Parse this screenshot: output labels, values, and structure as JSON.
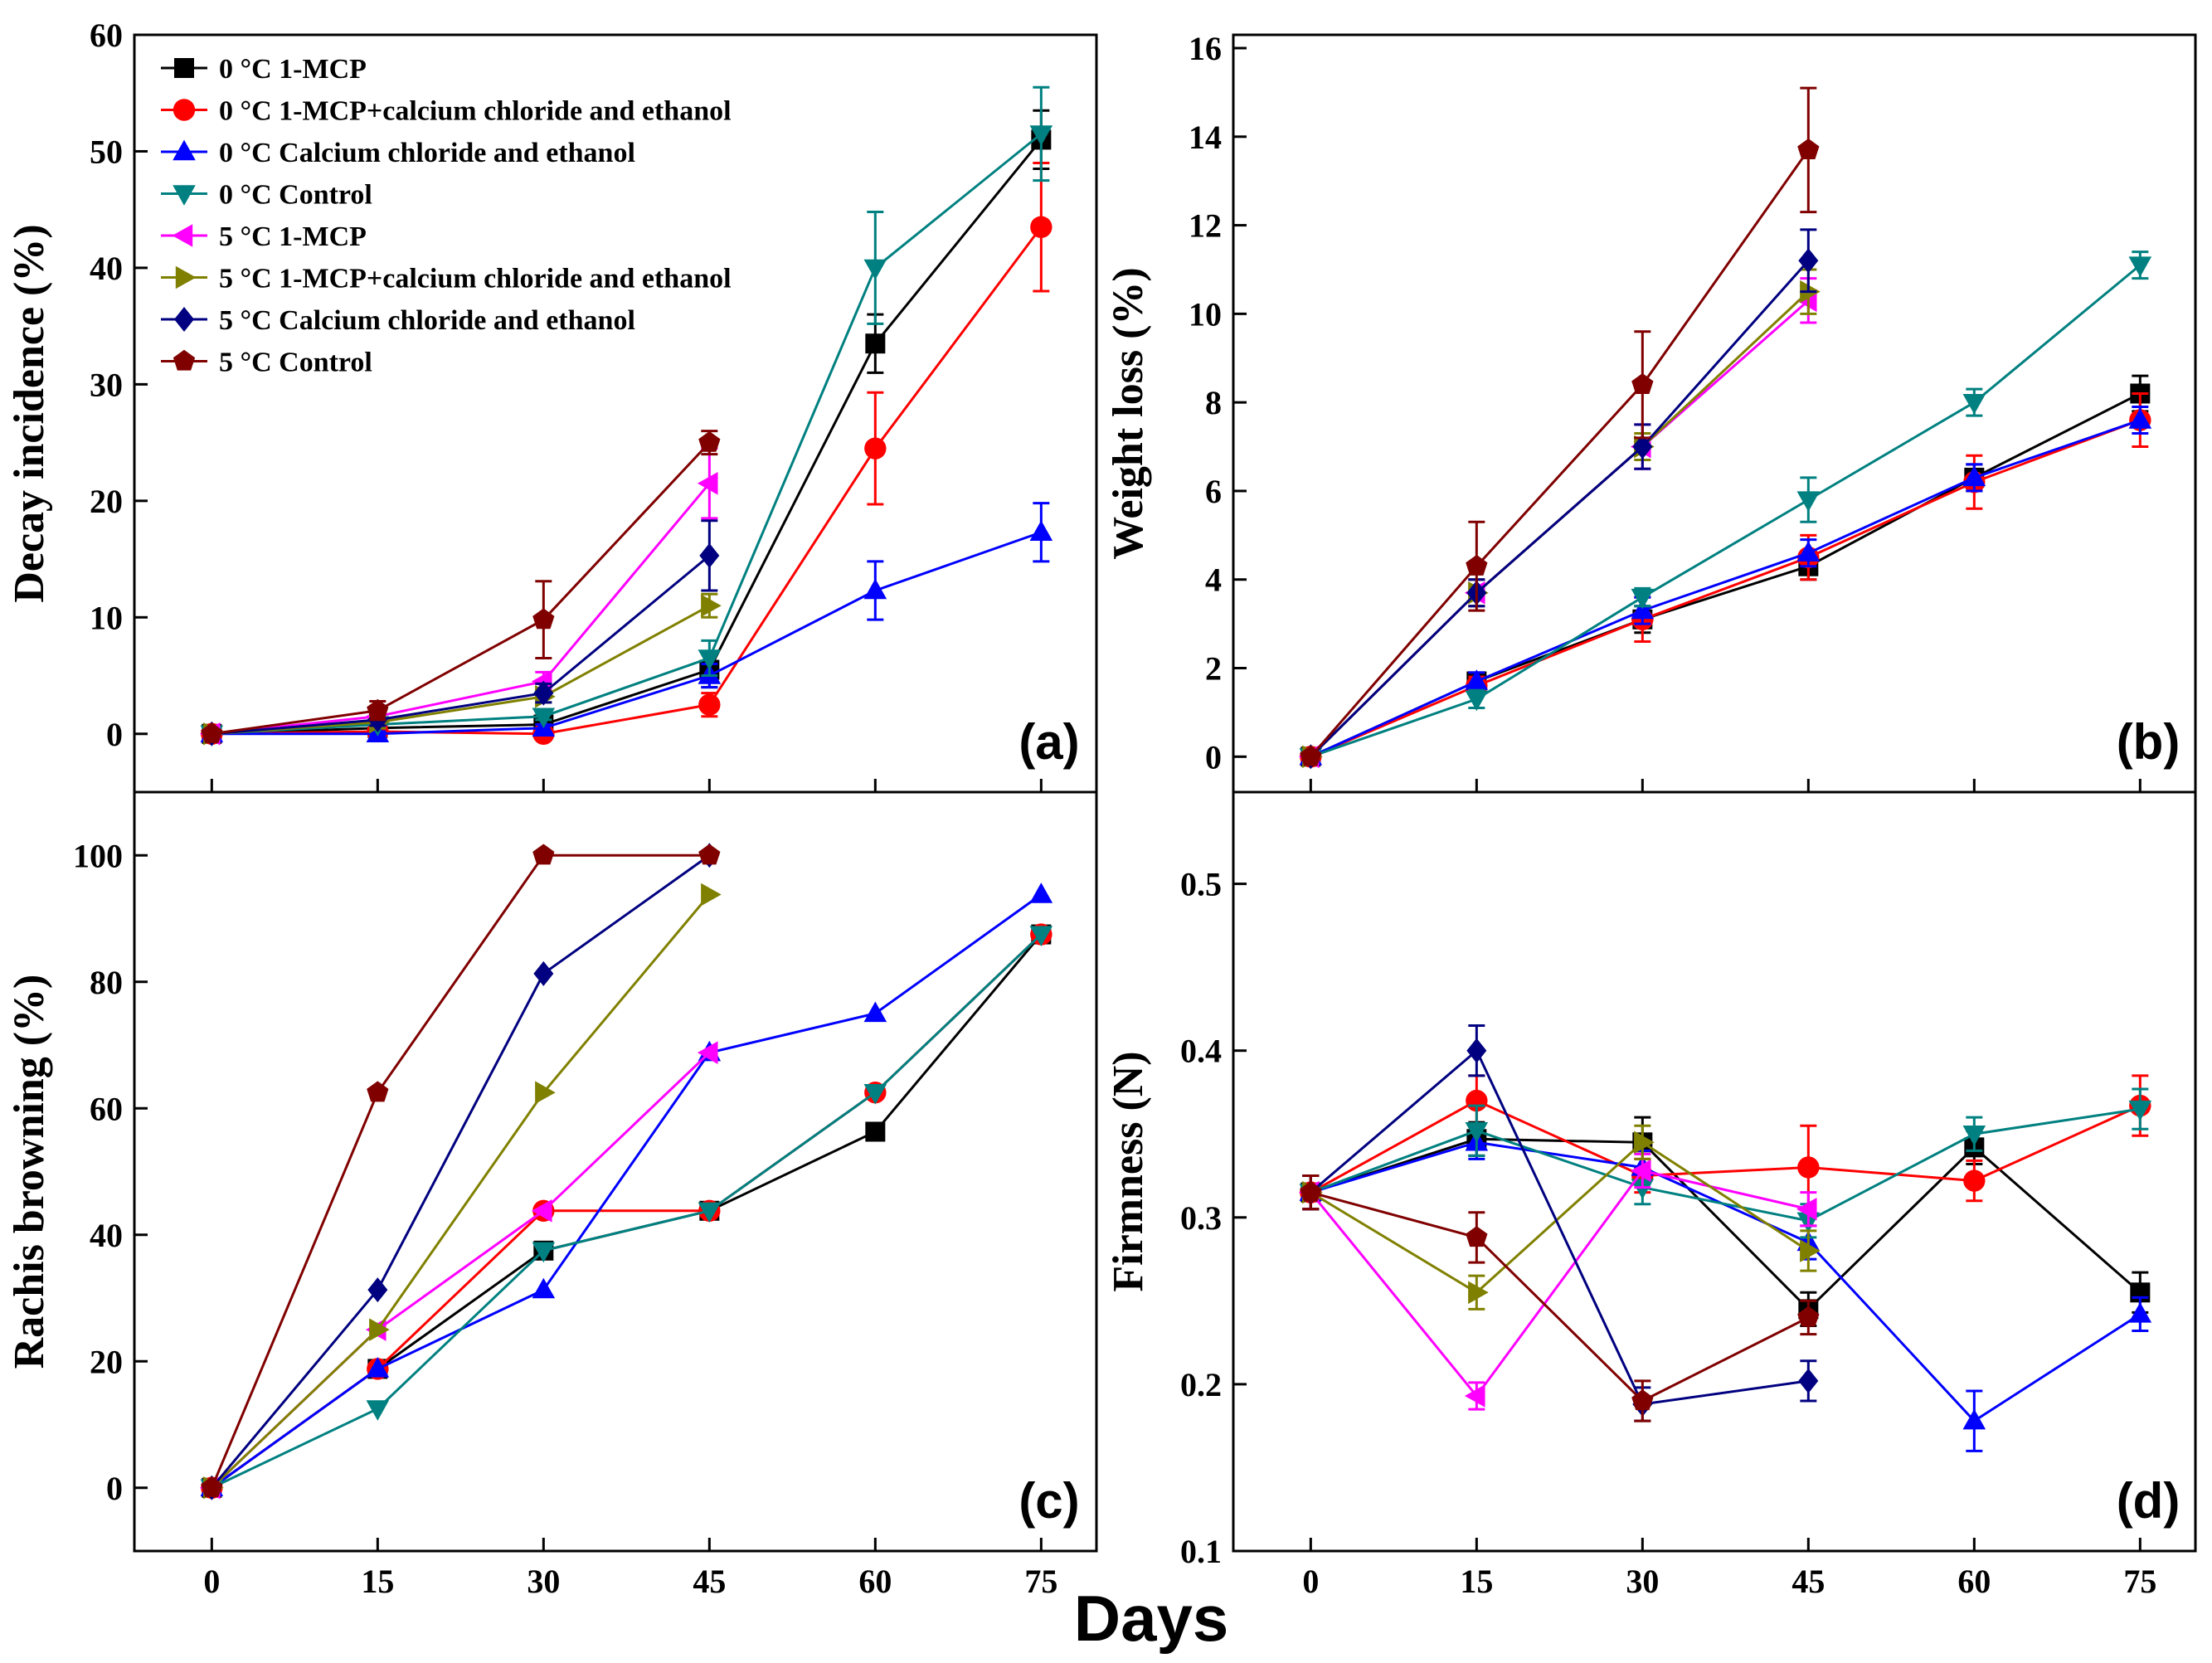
{
  "figure": {
    "shared_xlabel": "Days",
    "series_styles": [
      {
        "name": "0 °C 1-MCP",
        "color": "#000000",
        "marker": "square"
      },
      {
        "name": "0 °C 1-MCP+calcium chloride and ethanol",
        "color": "#ff0000",
        "marker": "circle"
      },
      {
        "name": "0 °C Calcium chloride and ethanol",
        "color": "#0000ff",
        "marker": "triangle-up"
      },
      {
        "name": "0 °C Control",
        "color": "#008080",
        "marker": "triangle-down"
      },
      {
        "name": "5 °C 1-MCP",
        "color": "#ff00ff",
        "marker": "triangle-left"
      },
      {
        "name": "5 °C 1-MCP+calcium chloride and ethanol",
        "color": "#808000",
        "marker": "triangle-right"
      },
      {
        "name": "5 °C Calcium chloride and ethanol",
        "color": "#000080",
        "marker": "diamond"
      },
      {
        "name": "5 °C Control",
        "color": "#800000",
        "marker": "pentagon"
      }
    ]
  },
  "chart_data": [
    {
      "type": "line",
      "panel": "(a)",
      "ylabel": "Decay incidence (%)",
      "xlabel": "",
      "ylim": [
        -5,
        60
      ],
      "yticks": [
        0,
        10,
        20,
        30,
        40,
        50,
        60
      ],
      "xlim": [
        -7,
        80
      ],
      "xticks": [
        0,
        15,
        30,
        45,
        60,
        75
      ],
      "show_x_tick_labels": false,
      "legend": "top-left",
      "series": [
        {
          "name": "0 °C 1-MCP",
          "x": [
            0,
            15,
            30,
            45,
            60,
            75
          ],
          "values": [
            0,
            0.5,
            0.8,
            5.5,
            33.5,
            51
          ],
          "err": [
            0,
            0.3,
            0.3,
            1.5,
            2.5,
            2.5
          ]
        },
        {
          "name": "0 °C 1-MCP+calcium chloride and ethanol",
          "x": [
            0,
            15,
            30,
            45,
            60,
            75
          ],
          "values": [
            0,
            0.2,
            0,
            2.5,
            24.5,
            43.5
          ],
          "err": [
            0,
            0.2,
            0.2,
            1,
            4.8,
            5.5
          ]
        },
        {
          "name": "0 °C Calcium chloride and ethanol",
          "x": [
            0,
            15,
            30,
            45,
            60,
            75
          ],
          "values": [
            0,
            0,
            0.5,
            5,
            12.3,
            17.3
          ],
          "err": [
            0,
            0.2,
            0.3,
            1,
            2.5,
            2.5
          ]
        },
        {
          "name": "0 °C Control",
          "x": [
            0,
            15,
            30,
            45,
            60,
            75
          ],
          "values": [
            0,
            0.8,
            1.5,
            6.5,
            40,
            51.5
          ],
          "err": [
            0,
            0.3,
            0.3,
            1.5,
            4.8,
            4
          ]
        },
        {
          "name": "5 °C 1-MCP",
          "x": [
            0,
            15,
            30,
            45
          ],
          "values": [
            0,
            1.5,
            4.5,
            21.5
          ],
          "err": [
            0,
            0.5,
            0.8,
            3
          ]
        },
        {
          "name": "5 °C 1-MCP+calcium chloride and ethanol",
          "x": [
            0,
            15,
            30,
            45
          ],
          "values": [
            0,
            1,
            3.2,
            11
          ],
          "err": [
            0,
            0.5,
            0.5,
            1
          ]
        },
        {
          "name": "5 °C Calcium chloride and ethanol",
          "x": [
            0,
            15,
            30,
            45
          ],
          "values": [
            0,
            1.2,
            3.5,
            15.3
          ],
          "err": [
            0,
            0.5,
            0.8,
            3
          ]
        },
        {
          "name": "5 °C Control",
          "x": [
            0,
            15,
            30,
            45
          ],
          "values": [
            0,
            2,
            9.8,
            25
          ],
          "err": [
            0,
            0.8,
            3.3,
            1
          ]
        }
      ]
    },
    {
      "type": "line",
      "panel": "(b)",
      "ylabel": "Weight loss (%)",
      "xlabel": "",
      "ylim": [
        -0.8,
        16.3
      ],
      "yticks": [
        0,
        2,
        4,
        6,
        8,
        10,
        12,
        14,
        16
      ],
      "xlim": [
        -7,
        80
      ],
      "xticks": [
        0,
        15,
        30,
        45,
        60,
        75
      ],
      "show_x_tick_labels": false,
      "legend": "none",
      "series": [
        {
          "name": "0 °C 1-MCP",
          "x": [
            0,
            15,
            30,
            45,
            60,
            75
          ],
          "values": [
            0,
            1.7,
            3.1,
            4.3,
            6.3,
            8.2
          ],
          "err": [
            0,
            0.2,
            0.3,
            0.3,
            0.3,
            0.4
          ]
        },
        {
          "name": "0 °C 1-MCP+calcium chloride and ethanol",
          "x": [
            0,
            15,
            30,
            45,
            60,
            75
          ],
          "values": [
            0,
            1.6,
            3.1,
            4.5,
            6.2,
            7.6
          ],
          "err": [
            0,
            0.2,
            0.5,
            0.5,
            0.6,
            0.6
          ]
        },
        {
          "name": "0 °C Calcium chloride and ethanol",
          "x": [
            0,
            15,
            30,
            45,
            60,
            75
          ],
          "values": [
            0,
            1.7,
            3.3,
            4.6,
            6.3,
            7.6
          ],
          "err": [
            0,
            0.2,
            0.3,
            0.3,
            0.3,
            0.3
          ]
        },
        {
          "name": "0 °C Control",
          "x": [
            0,
            15,
            30,
            45,
            60,
            75
          ],
          "values": [
            0,
            1.3,
            3.6,
            5.8,
            8,
            11.1
          ],
          "err": [
            0,
            0.2,
            0.2,
            0.5,
            0.3,
            0.3
          ]
        },
        {
          "name": "5 °C 1-MCP",
          "x": [
            0,
            15,
            30,
            45
          ],
          "values": [
            0,
            3.7,
            7,
            10.3
          ],
          "err": [
            0,
            0.3,
            0.5,
            0.5
          ]
        },
        {
          "name": "5 °C 1-MCP+calcium chloride and ethanol",
          "x": [
            0,
            15,
            30,
            45
          ],
          "values": [
            0,
            3.7,
            7,
            10.5
          ],
          "err": [
            0,
            0.3,
            0.3,
            0.5
          ]
        },
        {
          "name": "5 °C Calcium chloride and ethanol",
          "x": [
            0,
            15,
            30,
            45
          ],
          "values": [
            0,
            3.7,
            7,
            11.2
          ],
          "err": [
            0,
            0.3,
            0.5,
            0.7
          ]
        },
        {
          "name": "5 °C Control",
          "x": [
            0,
            15,
            30,
            45
          ],
          "values": [
            0,
            4.3,
            8.4,
            13.7
          ],
          "err": [
            0,
            1,
            1.2,
            1.4
          ]
        }
      ]
    },
    {
      "type": "line",
      "panel": "(c)",
      "ylabel": "Rachis browning (%)",
      "xlabel": "",
      "ylim": [
        -10,
        110
      ],
      "yticks": [
        0,
        20,
        40,
        60,
        80,
        100
      ],
      "xlim": [
        -7,
        80
      ],
      "xticks": [
        0,
        15,
        30,
        45,
        60,
        75
      ],
      "show_x_tick_labels": true,
      "legend": "none",
      "series": [
        {
          "name": "0 °C 1-MCP",
          "x": [
            0,
            15,
            30,
            45,
            60,
            75
          ],
          "values": [
            0,
            18.8,
            37.5,
            43.8,
            56.3,
            87.5
          ]
        },
        {
          "name": "0 °C 1-MCP+calcium chloride and ethanol",
          "x": [
            0,
            15,
            30,
            45,
            60,
            75
          ],
          "values": [
            0,
            18.8,
            43.8,
            43.8,
            62.5,
            87.5
          ]
        },
        {
          "name": "0 °C Calcium chloride and ethanol",
          "x": [
            0,
            15,
            30,
            45,
            60,
            75
          ],
          "values": [
            0,
            18.8,
            31.3,
            68.8,
            75,
            93.8
          ]
        },
        {
          "name": "0 °C Control",
          "x": [
            0,
            15,
            30,
            45,
            60,
            75
          ],
          "values": [
            0,
            12.5,
            37.5,
            43.8,
            62.5,
            87.5
          ]
        },
        {
          "name": "5 °C 1-MCP",
          "x": [
            0,
            15,
            30,
            45
          ],
          "values": [
            0,
            25,
            43.8,
            68.8
          ]
        },
        {
          "name": "5 °C 1-MCP+calcium chloride and ethanol",
          "x": [
            0,
            15,
            30,
            45
          ],
          "values": [
            0,
            25,
            62.5,
            93.8
          ]
        },
        {
          "name": "5 °C Calcium chloride and ethanol",
          "x": [
            0,
            15,
            30,
            45
          ],
          "values": [
            0,
            31.3,
            81.3,
            100
          ]
        },
        {
          "name": "5 °C Control",
          "x": [
            0,
            15,
            30,
            45
          ],
          "values": [
            0,
            62.5,
            100,
            100
          ]
        }
      ]
    },
    {
      "type": "line",
      "panel": "(d)",
      "ylabel": "Firmness (N)",
      "xlabel": "",
      "ylim": [
        0.1,
        0.555
      ],
      "yticks": [
        0.1,
        0.2,
        0.3,
        0.4,
        0.5
      ],
      "xlim": [
        -7,
        80
      ],
      "xticks": [
        0,
        15,
        30,
        45,
        60,
        75
      ],
      "show_x_tick_labels": true,
      "legend": "none",
      "series": [
        {
          "name": "0 °C 1-MCP",
          "x": [
            0,
            15,
            30,
            45,
            60,
            75
          ],
          "values": [
            0.315,
            0.347,
            0.345,
            0.245,
            0.342,
            0.255
          ],
          "err": [
            0.01,
            0.01,
            0.015,
            0.01,
            0.01,
            0.012
          ]
        },
        {
          "name": "0 °C 1-MCP+calcium chloride and ethanol",
          "x": [
            0,
            15,
            30,
            45,
            60,
            75
          ],
          "values": [
            0.315,
            0.37,
            0.325,
            0.33,
            0.322,
            0.367
          ],
          "err": [
            0.01,
            0.015,
            0.01,
            0.025,
            0.012,
            0.018
          ]
        },
        {
          "name": "0 °C Calcium chloride and ethanol",
          "x": [
            0,
            15,
            30,
            45,
            60,
            75
          ],
          "values": [
            0.315,
            0.345,
            0.33,
            0.285,
            0.178,
            0.242
          ],
          "err": [
            0.01,
            0.01,
            0.01,
            0.01,
            0.018,
            0.01
          ]
        },
        {
          "name": "0 °C Control",
          "x": [
            0,
            15,
            30,
            45,
            60,
            75
          ],
          "values": [
            0.315,
            0.352,
            0.318,
            0.298,
            0.35,
            0.365
          ],
          "err": [
            0.01,
            0.015,
            0.01,
            0.01,
            0.01,
            0.012
          ]
        },
        {
          "name": "5 °C 1-MCP",
          "x": [
            0,
            15,
            30,
            45
          ],
          "values": [
            0.315,
            0.193,
            0.328,
            0.305
          ],
          "err": [
            0.01,
            0.008,
            0.01,
            0.01
          ]
        },
        {
          "name": "5 °C 1-MCP+calcium chloride and ethanol",
          "x": [
            0,
            15,
            30,
            45
          ],
          "values": [
            0.315,
            0.255,
            0.345,
            0.28
          ],
          "err": [
            0.01,
            0.01,
            0.01,
            0.012
          ]
        },
        {
          "name": "5 °C Calcium chloride and ethanol",
          "x": [
            0,
            15,
            30,
            45
          ],
          "values": [
            0.315,
            0.4,
            0.188,
            0.202
          ],
          "err": [
            0.01,
            0.015,
            0.01,
            0.012
          ]
        },
        {
          "name": "5 °C Control",
          "x": [
            0,
            15,
            30,
            45
          ],
          "values": [
            0.315,
            0.288,
            0.19,
            0.24
          ],
          "err": [
            0.01,
            0.015,
            0.012,
            0.01
          ]
        }
      ]
    }
  ]
}
